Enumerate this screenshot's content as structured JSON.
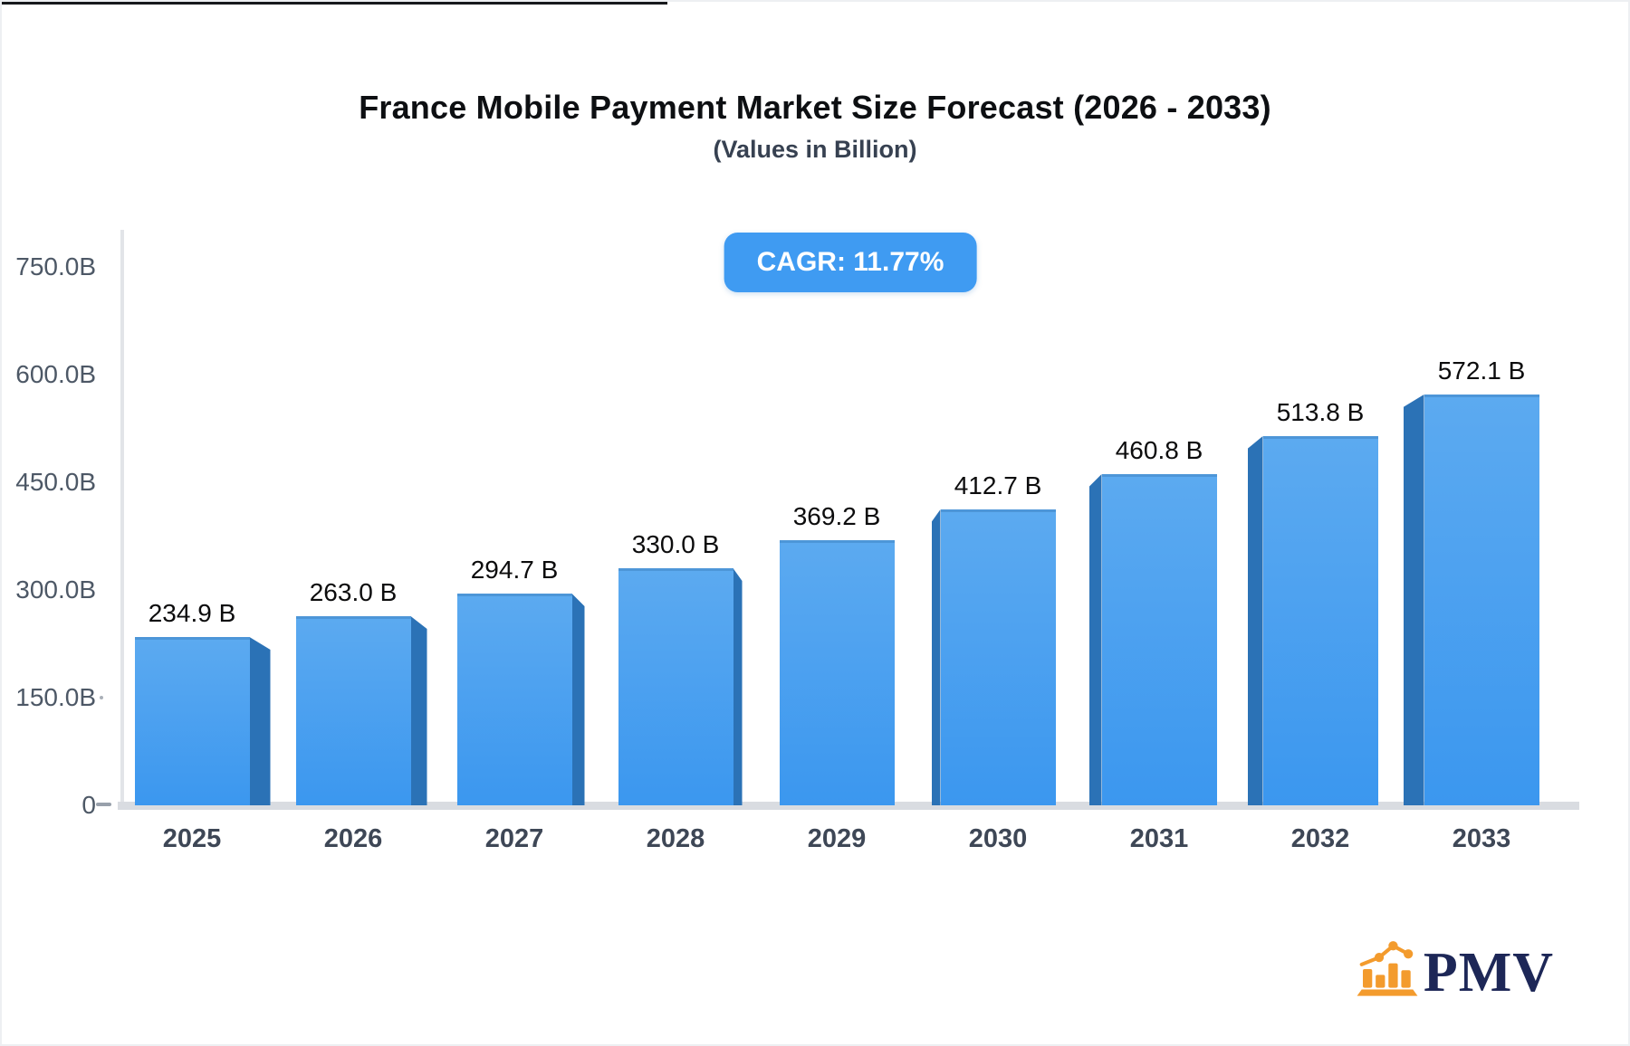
{
  "header": {
    "title": "France Mobile Payment Market Size Forecast (2026 - 2033)",
    "subtitle": "(Values in Billion)"
  },
  "badge": {
    "label": "CAGR: 11.77%",
    "color": "#3f9bf2"
  },
  "chart_data": {
    "type": "bar",
    "title": "France Mobile Payment Market Size Forecast (2026 - 2033)",
    "subtitle": "(Values in Billion)",
    "cagr_percent": 11.77,
    "categories": [
      "2025",
      "2026",
      "2027",
      "2028",
      "2029",
      "2030",
      "2031",
      "2032",
      "2033"
    ],
    "values": [
      234.9,
      263.0,
      294.7,
      330.0,
      369.2,
      412.7,
      460.8,
      513.8,
      572.1
    ],
    "value_labels": [
      "234.9 B",
      "263.0 B",
      "294.7 B",
      "330.0 B",
      "369.2 B",
      "412.7 B",
      "460.8 B",
      "513.8 B",
      "572.1 B"
    ],
    "xlabel": "",
    "ylabel": "",
    "ylim": [
      0,
      750
    ],
    "ytick_values": [
      750,
      600,
      450,
      300,
      150,
      0
    ],
    "ytick_labels": [
      "750.0B",
      "600.0B",
      "450.0B",
      "300.0B",
      "150.0B",
      "0"
    ],
    "grid": false,
    "legend": false,
    "bar_face_color_top": "#5caaf0",
    "bar_face_color_bottom": "#3b97ef",
    "bar_side_color": "#2b72b6",
    "style": "3d-extruded-bars-center-perspective"
  },
  "branding": {
    "logo_text": "PMV",
    "logo_text_color": "#1d2757",
    "icon": "bar-chart-icon",
    "icon_color": "#f39b2d"
  }
}
